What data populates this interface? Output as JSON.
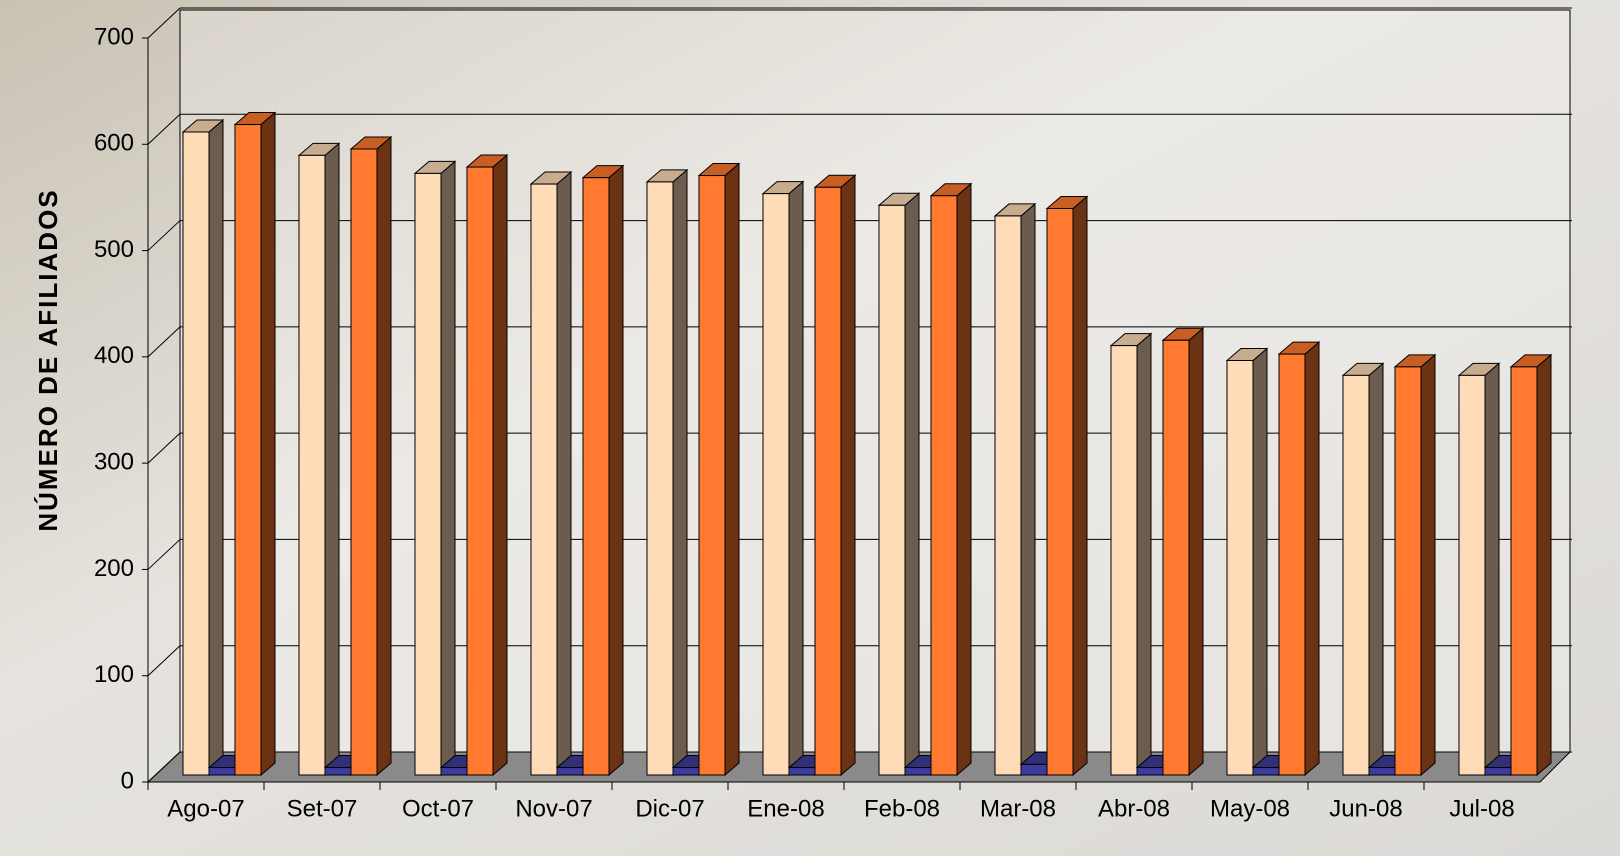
{
  "chart_data": {
    "type": "bar3d",
    "y_label": "NÚMERO DE AFILIADOS",
    "categories": [
      "Ago-07",
      "Set-07",
      "Oct-07",
      "Nov-07",
      "Dic-07",
      "Ene-08",
      "Feb-08",
      "Mar-08",
      "Abr-08",
      "May-08",
      "Jun-08",
      "Jul-08"
    ],
    "series": [
      {
        "color": "#ffdcb8",
        "values": [
          605,
          583,
          566,
          556,
          558,
          547,
          536,
          526,
          404,
          390,
          376,
          376
        ]
      },
      {
        "color": "#3c3c9c",
        "values": [
          7,
          7,
          7,
          7,
          7,
          7,
          7,
          10,
          7,
          7,
          7,
          7
        ]
      },
      {
        "color": "#ff7a30",
        "values": [
          612,
          589,
          572,
          562,
          564,
          553,
          545,
          533,
          409,
          396,
          384,
          384
        ]
      }
    ],
    "ylim": [
      0,
      700
    ],
    "yticks": [
      0,
      100,
      200,
      300,
      400,
      500,
      600,
      700
    ],
    "grid": true
  }
}
